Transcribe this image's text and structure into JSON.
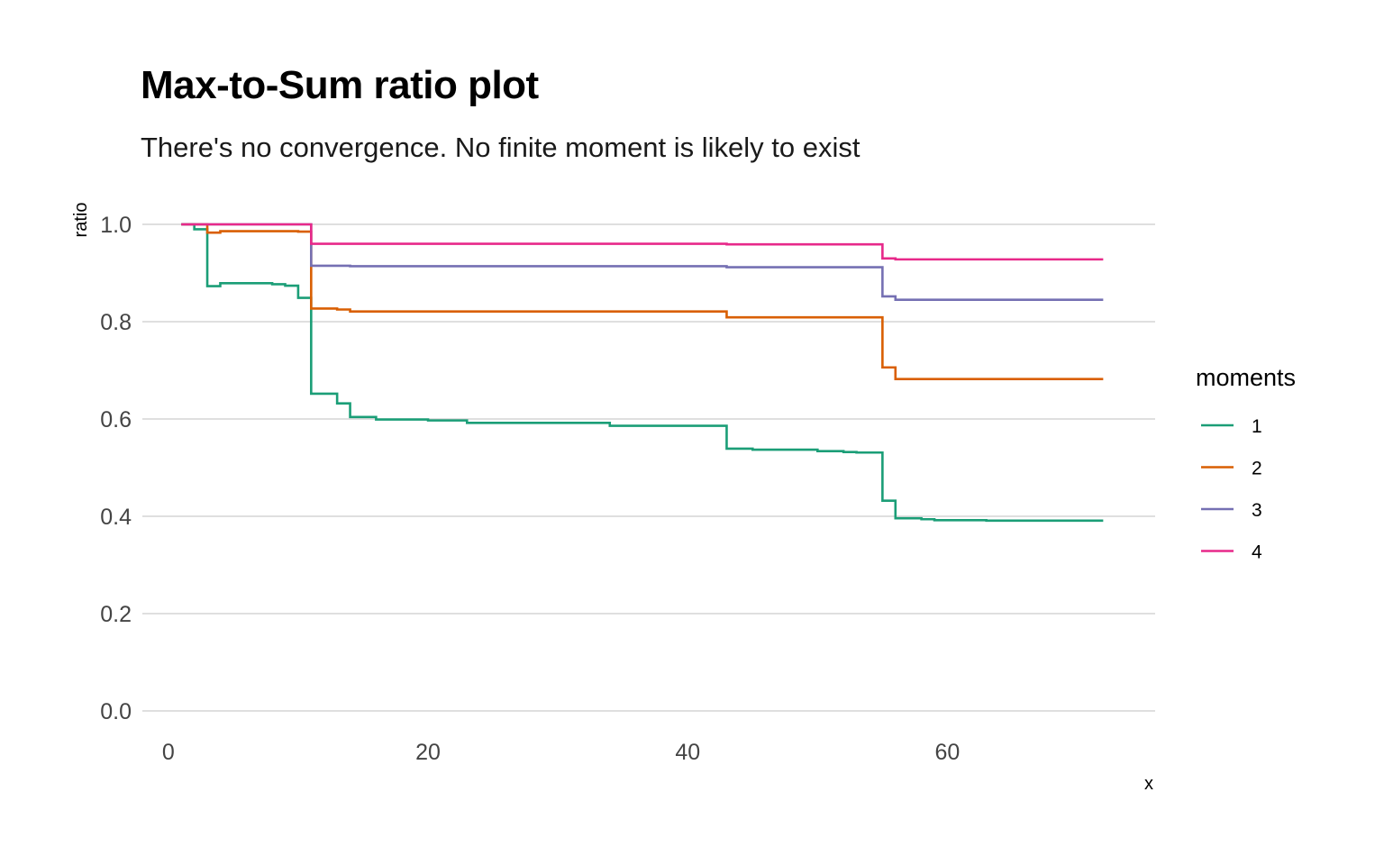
{
  "chart_data": {
    "type": "line",
    "step": true,
    "title": "Max-to-Sum ratio plot",
    "subtitle": "There's no convergence. No finite moment is likely to exist",
    "xlabel": "x",
    "ylabel": "ratio",
    "xlim": [
      -2,
      76
    ],
    "ylim": [
      -0.05,
      1.05
    ],
    "x_ticks": [
      0,
      20,
      40,
      60
    ],
    "x_tick_labels": [
      "0",
      "20",
      "40",
      "60"
    ],
    "y_ticks": [
      0.0,
      0.2,
      0.4,
      0.6,
      0.8,
      1.0
    ],
    "y_tick_labels": [
      "0.0",
      "0.2",
      "0.4",
      "0.6",
      "0.8",
      "1.0"
    ],
    "grid": "horizontal major lines",
    "legend": {
      "title": "moments",
      "position": "right"
    },
    "series": [
      {
        "name": "1",
        "color": "#1b9e77",
        "x": [
          1,
          2,
          3,
          4,
          8,
          9,
          10,
          11,
          13,
          14,
          16,
          20,
          23,
          34,
          43,
          45,
          50,
          52,
          53,
          55,
          56,
          58,
          59,
          63,
          72
        ],
        "y": [
          1.0,
          0.99,
          0.873,
          0.879,
          0.877,
          0.874,
          0.849,
          0.652,
          0.632,
          0.604,
          0.599,
          0.597,
          0.592,
          0.586,
          0.539,
          0.537,
          0.534,
          0.532,
          0.531,
          0.432,
          0.396,
          0.394,
          0.392,
          0.391,
          0.391
        ]
      },
      {
        "name": "2",
        "color": "#d95f02",
        "x": [
          1,
          3,
          4,
          10,
          11,
          13,
          14,
          20,
          43,
          55,
          56,
          72
        ],
        "y": [
          1.0,
          0.983,
          0.986,
          0.985,
          0.827,
          0.825,
          0.821,
          0.821,
          0.809,
          0.706,
          0.682,
          0.682
        ]
      },
      {
        "name": "3",
        "color": "#7570b3",
        "x": [
          1,
          10,
          11,
          14,
          43,
          55,
          56,
          72
        ],
        "y": [
          1.0,
          1.0,
          0.915,
          0.914,
          0.912,
          0.852,
          0.845,
          0.845
        ]
      },
      {
        "name": "4",
        "color": "#e7298a",
        "x": [
          1,
          10,
          11,
          43,
          55,
          56,
          72
        ],
        "y": [
          1.0,
          1.0,
          0.96,
          0.959,
          0.93,
          0.928,
          0.928
        ]
      }
    ]
  }
}
